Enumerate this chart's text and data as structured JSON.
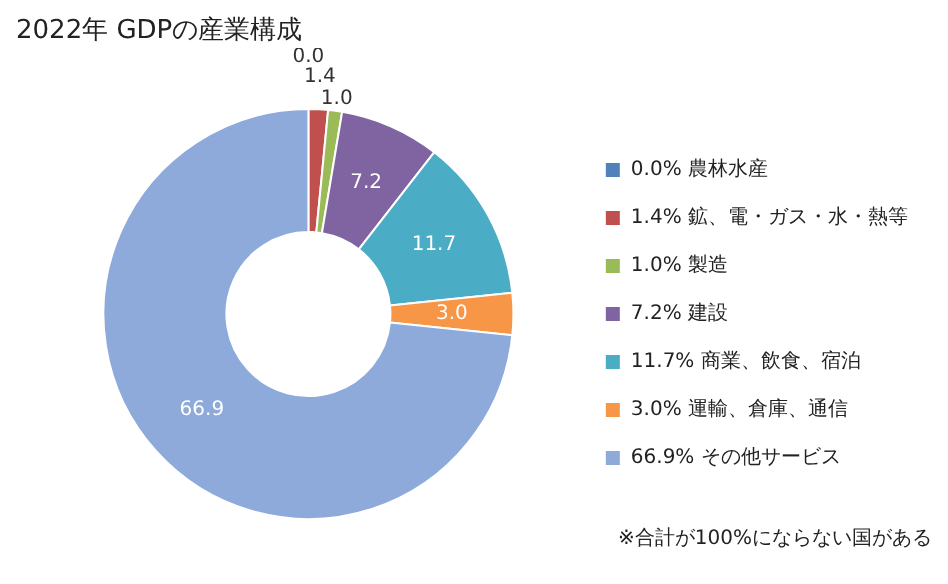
{
  "chart_data": {
    "type": "donut",
    "title": "2022年 GDPの産業構成",
    "categories": [
      "0.0% 農林水産",
      "1.4% 鉱、電・ガス・水・熱等",
      "1.0% 製造",
      "7.2% 建設",
      "11.7% 商業、飲食、宿泊",
      "3.0% 運輸、倉庫、通信",
      "66.9% その他サービス"
    ],
    "values": [
      0.0,
      1.4,
      1.0,
      7.2,
      11.7,
      3.0,
      66.9
    ],
    "value_labels": [
      "0.0",
      "1.4",
      "1.0",
      "7.2",
      "11.7",
      "3.0",
      "66.9"
    ],
    "colors": [
      "#4f81bd",
      "#c0504d",
      "#9bbb59",
      "#8064a2",
      "#4bacc6",
      "#f79646",
      "#8eaadb"
    ],
    "legend": "right",
    "annotations": [
      "※合計が100%にならない国がある"
    ]
  }
}
